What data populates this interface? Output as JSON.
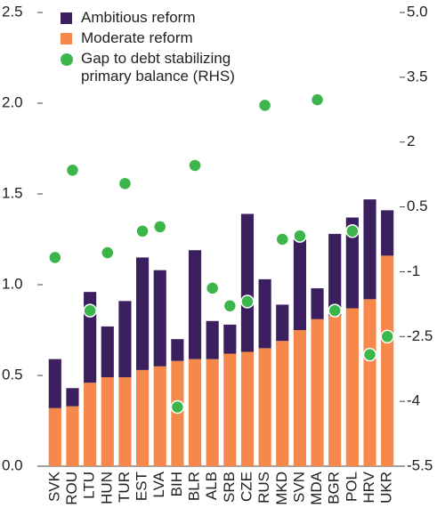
{
  "chart_data": {
    "type": "bar",
    "categories": [
      "SVK",
      "ROU",
      "LTU",
      "HUN",
      "TUR",
      "EST",
      "LVA",
      "BIH",
      "BLR",
      "ALB",
      "SRB",
      "CZE",
      "RUS",
      "MKD",
      "SVN",
      "MDA",
      "BGR",
      "POL",
      "HRV",
      "UKR"
    ],
    "series": [
      {
        "name": "Ambitious reform",
        "type": "bar",
        "color": "#3b1f5e",
        "values": [
          0.27,
          0.1,
          0.5,
          0.28,
          0.42,
          0.62,
          0.53,
          0.12,
          0.6,
          0.21,
          0.16,
          0.76,
          0.38,
          0.2,
          0.5,
          0.17,
          0.45,
          0.5,
          0.55,
          0.25
        ]
      },
      {
        "name": "Moderate reform",
        "type": "bar",
        "color": "#f5884a",
        "values": [
          0.32,
          0.33,
          0.46,
          0.49,
          0.49,
          0.53,
          0.55,
          0.58,
          0.59,
          0.59,
          0.62,
          0.63,
          0.65,
          0.69,
          0.75,
          0.81,
          0.83,
          0.87,
          0.92,
          1.16
        ]
      },
      {
        "name": "Gap to debt stabilizing primary balance (RHS)",
        "type": "scatter",
        "axis": "y2",
        "color": "#3cb54a",
        "values": [
          -0.67,
          1.35,
          -1.9,
          -0.56,
          1.04,
          -0.06,
          0.04,
          -4.13,
          1.46,
          -1.38,
          -1.79,
          -1.69,
          2.85,
          -0.25,
          -0.17,
          2.98,
          -1.9,
          -0.06,
          -2.92,
          -2.5
        ]
      }
    ],
    "ylim": [
      0,
      2.5
    ],
    "yticks": [
      {
        "value": 0,
        "label": "0.0"
      },
      0.5,
      {
        "value": 1,
        "label": "1.0"
      },
      1.5,
      {
        "value": 2,
        "label": "2.0"
      },
      2.5
    ],
    "y2lim": [
      -5.5,
      5.0
    ],
    "y2ticks": [
      -5.5,
      -4,
      -2.5,
      -1,
      0.5,
      2,
      3.5,
      {
        "value": 5,
        "label": "5.0"
      }
    ],
    "legend": "top-left"
  }
}
